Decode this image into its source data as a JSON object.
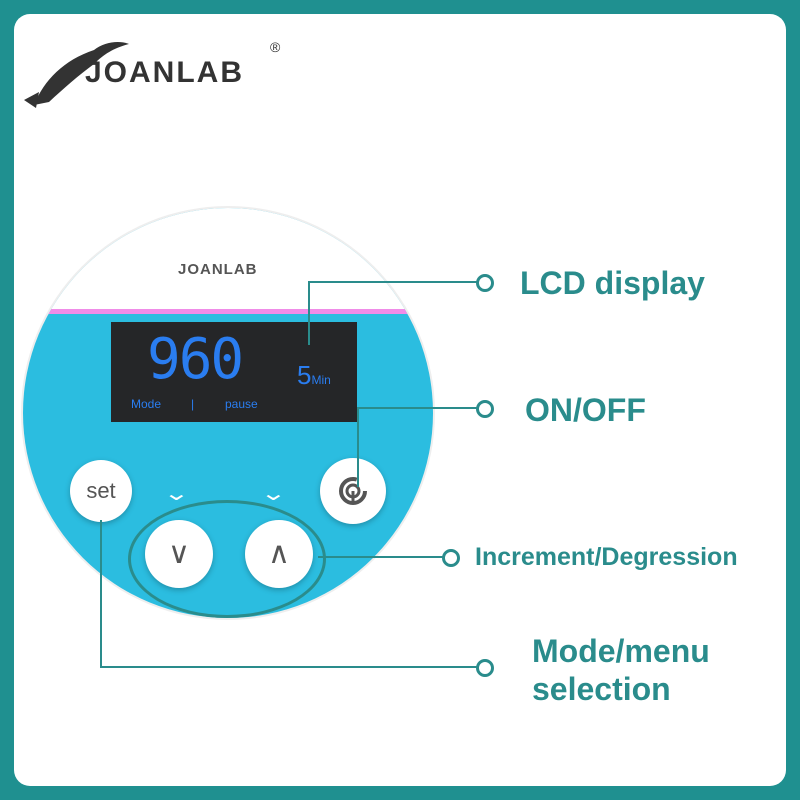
{
  "brand": {
    "name": "JOANLAB",
    "registered": "®"
  },
  "device": {
    "brand": "JOANLAB",
    "lcd": {
      "value": "960",
      "time_value": "5",
      "time_unit": "Min",
      "mode_label": "Mode",
      "separator": "|",
      "pause_label": "pause"
    },
    "buttons": {
      "set": "set",
      "down": "∨",
      "up": "∧",
      "power": "power-icon"
    }
  },
  "callouts": {
    "lcd": "LCD display",
    "onoff": "ON/OFF",
    "increment": "Increment/Degression",
    "mode_line1": "Mode/menu",
    "mode_line2": "selection"
  },
  "colors": {
    "frame": "#1f9090",
    "device": "#2bbde0",
    "lcd_text": "#2a7df0",
    "accent": "#2a8c8c"
  }
}
